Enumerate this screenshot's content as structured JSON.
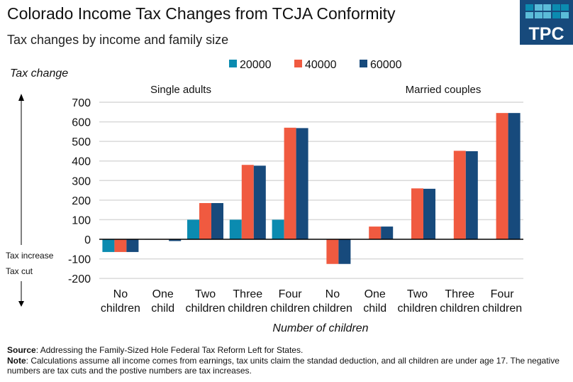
{
  "title": "Colorado Income Tax Changes from TCJA Conformity",
  "subtitle": "Tax changes by income and family size",
  "logo": "TPC",
  "notes": {
    "source_label": "Source",
    "source_text": ": Addressing the Family-Sized Hole Federal Tax Reform Left for States.",
    "note_label": "Note",
    "note_text": ": Calculations assume all income comes from earnings, tax units claim the standad deduction, and all children are under age 17. The negative numbers are tax cuts and the postive numbers are tax increases."
  },
  "chart_data": {
    "type": "bar",
    "ylabel": "Tax change",
    "xlabel": "Number of children",
    "ylim": [
      -200,
      700
    ],
    "yticks": [
      -200,
      -100,
      0,
      100,
      200,
      300,
      400,
      500,
      600,
      700
    ],
    "grid": true,
    "legend_position": "top",
    "arrow_labels": {
      "up": "Tax increase",
      "down": "Tax cut"
    },
    "group_labels": [
      "Single adults",
      "Married couples"
    ],
    "categories": [
      [
        "No",
        "children"
      ],
      [
        "One",
        "child"
      ],
      [
        "Two",
        "children"
      ],
      [
        "Three",
        "children"
      ],
      [
        "Four",
        "children"
      ],
      [
        "No",
        "children"
      ],
      [
        "One",
        "child"
      ],
      [
        "Two",
        "children"
      ],
      [
        "Three",
        "children"
      ],
      [
        "Four",
        "children"
      ]
    ],
    "series": [
      {
        "name": "20000",
        "color": "#0b8bb0",
        "values": [
          -65,
          -2,
          100,
          100,
          100,
          0,
          0,
          0,
          0,
          0
        ]
      },
      {
        "name": "40000",
        "color": "#f05a40",
        "values": [
          -65,
          -2,
          185,
          380,
          570,
          -126,
          65,
          260,
          452,
          645
        ]
      },
      {
        "name": "60000",
        "color": "#174a7c",
        "values": [
          -65,
          -9,
          185,
          376,
          568,
          -126,
          65,
          258,
          450,
          645
        ]
      }
    ]
  }
}
